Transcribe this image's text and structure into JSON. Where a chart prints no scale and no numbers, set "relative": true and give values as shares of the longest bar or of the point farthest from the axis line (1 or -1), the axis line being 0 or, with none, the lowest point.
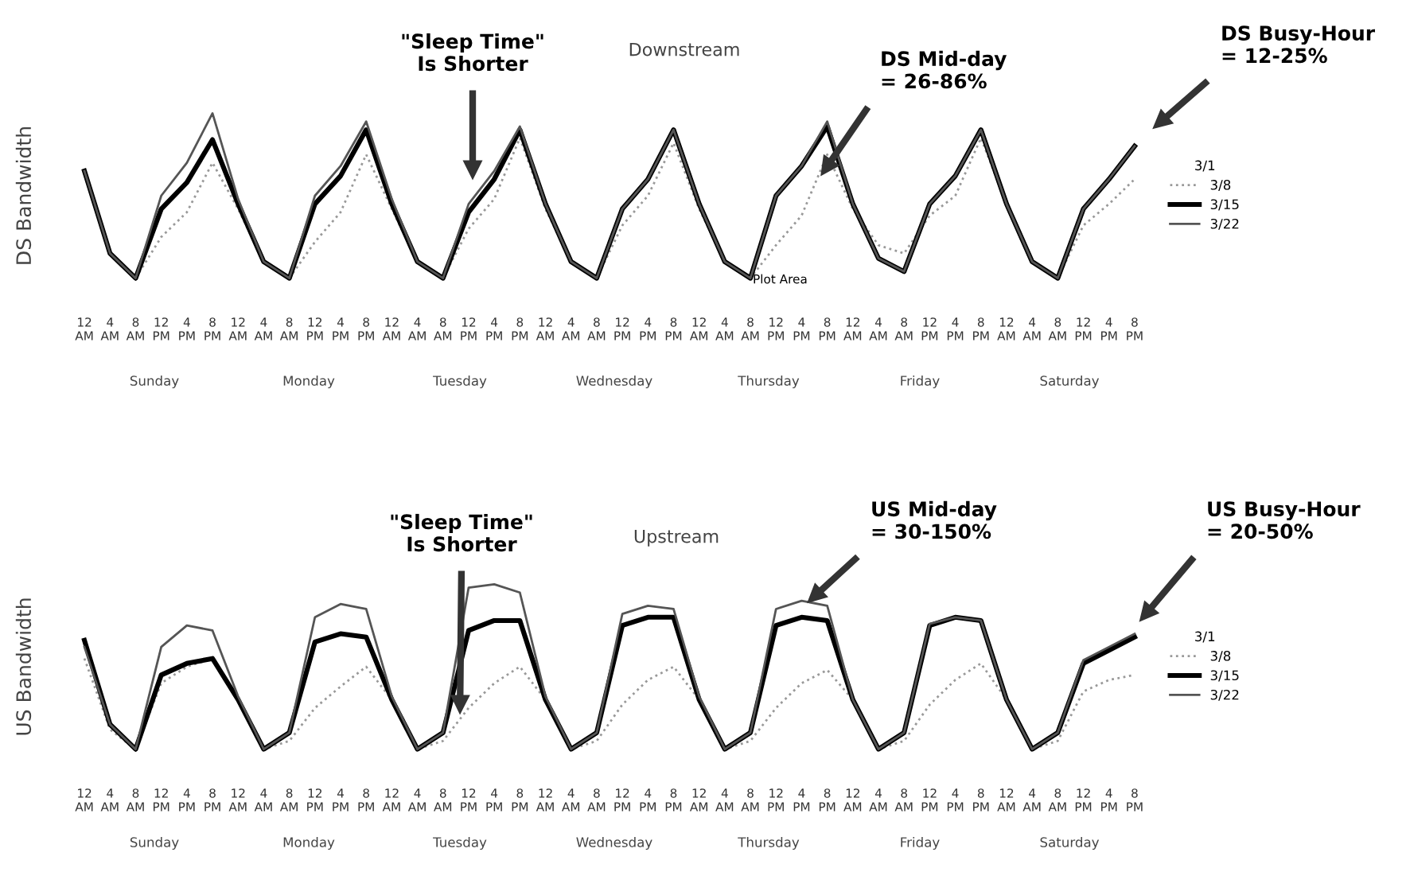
{
  "chart_data": [
    {
      "type": "line",
      "title": "Downstream",
      "ylabel": "DS Bandwidth",
      "relative": true,
      "legend": "right",
      "legend_title": "3/1",
      "grid": false,
      "marker": "none",
      "categories": [
        "12\nAM",
        "4\nAM",
        "8\nAM",
        "12\nPM",
        "4\nPM",
        "8\nPM",
        "12\nAM",
        "4\nAM",
        "8\nAM",
        "12\nPM",
        "4\nPM",
        "8\nPM",
        "12\nAM",
        "4\nAM",
        "8\nAM",
        "12\nPM",
        "4\nPM",
        "8\nPM",
        "12\nAM",
        "4\nAM",
        "8\nAM",
        "12\nPM",
        "4\nPM",
        "8\nPM",
        "12\nAM",
        "4\nAM",
        "8\nAM",
        "12\nPM",
        "4\nPM",
        "8\nPM",
        "12\nAM",
        "4\nAM",
        "8\nAM",
        "12\nPM",
        "4\nPM",
        "8\nPM",
        "12\nAM",
        "4\nAM",
        "8\nAM",
        "12\nPM",
        "4\nPM",
        "8\nPM"
      ],
      "series": [
        {
          "name": "3/8",
          "color": "#999999",
          "line_style": "dotted",
          "values": [
            0.65,
            0.15,
            0,
            0.25,
            0.4,
            0.7,
            0.42,
            0.1,
            0,
            0.22,
            0.4,
            0.75,
            0.42,
            0.1,
            0,
            0.3,
            0.48,
            0.85,
            0.42,
            0.1,
            0,
            0.32,
            0.5,
            0.82,
            0.42,
            0.1,
            0,
            0.2,
            0.38,
            0.75,
            0.42,
            0.2,
            0.15,
            0.38,
            0.5,
            0.85,
            0.45,
            0.1,
            0,
            0.32,
            0.45,
            0.6
          ]
        },
        {
          "name": "3/15",
          "color": "#000000",
          "line_style": "solid",
          "values": [
            0.65,
            0.15,
            0,
            0.42,
            0.58,
            0.84,
            0.45,
            0.1,
            0,
            0.45,
            0.62,
            0.9,
            0.45,
            0.1,
            0,
            0.4,
            0.6,
            0.9,
            0.45,
            0.1,
            0,
            0.42,
            0.6,
            0.9,
            0.45,
            0.1,
            0,
            0.5,
            0.68,
            0.92,
            0.45,
            0.12,
            0.04,
            0.45,
            0.62,
            0.9,
            0.45,
            0.1,
            0,
            0.42,
            0.6,
            0.8
          ]
        },
        {
          "name": "3/22",
          "color": "#555555",
          "line_style": "solid",
          "values": [
            0.65,
            0.15,
            0,
            0.5,
            0.7,
            1,
            0.48,
            0.1,
            0,
            0.5,
            0.68,
            0.95,
            0.48,
            0.1,
            0,
            0.45,
            0.65,
            0.92,
            0.45,
            0.1,
            0,
            0.42,
            0.6,
            0.9,
            0.45,
            0.1,
            0,
            0.5,
            0.68,
            0.95,
            0.45,
            0.12,
            0.04,
            0.45,
            0.62,
            0.9,
            0.45,
            0.1,
            0,
            0.42,
            0.6,
            0.8
          ]
        }
      ],
      "annotations": [
        "\"Sleep Time\"\nIs Shorter",
        "DS Mid-day\n= 26-86%",
        "DS Busy-Hour\n= 12-25%",
        "Plot Area",
        "Sunday",
        "Monday",
        "Tuesday",
        "Wednesday",
        "Thursday",
        "Friday",
        "Saturday"
      ]
    },
    {
      "type": "line",
      "title": "Upstream",
      "ylabel": "US Bandwidth",
      "relative": true,
      "legend": "right",
      "legend_title": "3/1",
      "grid": false,
      "marker": "none",
      "categories": [
        "12\nAM",
        "4\nAM",
        "8\nAM",
        "12\nPM",
        "4\nPM",
        "8\nPM",
        "12\nAM",
        "4\nAM",
        "8\nAM",
        "12\nPM",
        "4\nPM",
        "8\nPM",
        "12\nAM",
        "4\nAM",
        "8\nAM",
        "12\nPM",
        "4\nPM",
        "8\nPM",
        "12\nAM",
        "4\nAM",
        "8\nAM",
        "12\nPM",
        "4\nPM",
        "8\nPM",
        "12\nAM",
        "4\nAM",
        "8\nAM",
        "12\nPM",
        "4\nPM",
        "8\nPM",
        "12\nAM",
        "4\nAM",
        "8\nAM",
        "12\nPM",
        "4\nPM",
        "8\nPM",
        "12\nAM",
        "4\nAM",
        "8\nAM",
        "12\nPM",
        "4\nPM",
        "8\nPM"
      ],
      "series": [
        {
          "name": "3/8",
          "color": "#999999",
          "line_style": "dotted",
          "values": [
            0.55,
            0.12,
            0,
            0.4,
            0.5,
            0.55,
            0.3,
            0,
            0.05,
            0.25,
            0.38,
            0.5,
            0.3,
            0,
            0.05,
            0.25,
            0.4,
            0.5,
            0.3,
            0,
            0.05,
            0.27,
            0.42,
            0.5,
            0.3,
            0,
            0.05,
            0.25,
            0.4,
            0.48,
            0.3,
            0,
            0.05,
            0.27,
            0.42,
            0.52,
            0.3,
            0,
            0.05,
            0.35,
            0.42,
            0.45
          ]
        },
        {
          "name": "3/15",
          "color": "#000000",
          "line_style": "solid",
          "values": [
            0.66,
            0.15,
            0,
            0.45,
            0.52,
            0.55,
            0.3,
            0,
            0.1,
            0.65,
            0.7,
            0.68,
            0.3,
            0,
            0.1,
            0.72,
            0.78,
            0.78,
            0.3,
            0,
            0.1,
            0.75,
            0.8,
            0.8,
            0.3,
            0,
            0.1,
            0.75,
            0.8,
            0.78,
            0.3,
            0,
            0.1,
            0.75,
            0.8,
            0.78,
            0.3,
            0,
            0.1,
            0.52,
            0.6,
            0.68
          ]
        },
        {
          "name": "3/22",
          "color": "#555555",
          "line_style": "solid",
          "values": [
            0.62,
            0.15,
            0,
            0.62,
            0.75,
            0.72,
            0.32,
            0,
            0.1,
            0.8,
            0.88,
            0.85,
            0.32,
            0,
            0.1,
            0.98,
            1,
            0.95,
            0.32,
            0,
            0.1,
            0.82,
            0.87,
            0.85,
            0.32,
            0,
            0.1,
            0.85,
            0.9,
            0.87,
            0.3,
            0,
            0.1,
            0.76,
            0.8,
            0.78,
            0.3,
            0,
            0.1,
            0.54,
            0.62,
            0.7
          ]
        }
      ],
      "annotations": [
        "\"Sleep Time\"\nIs Shorter",
        "US Mid-day\n= 30-150%",
        "US Busy-Hour\n= 20-50%",
        "Sunday",
        "Monday",
        "Tuesday",
        "Wednesday",
        "Thursday",
        "Friday",
        "Saturday"
      ]
    }
  ]
}
